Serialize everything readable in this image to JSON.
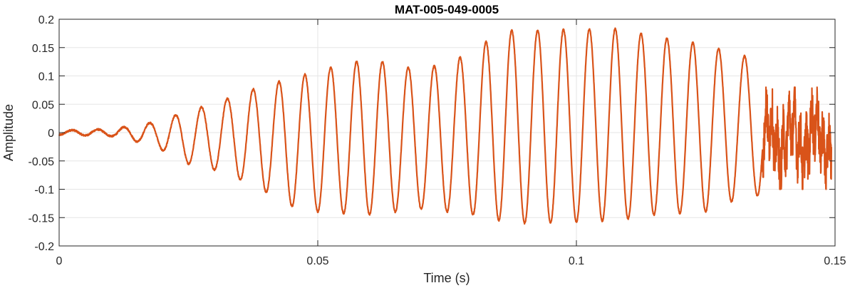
{
  "chart_data": {
    "type": "line",
    "title": "MAT-005-049-0005",
    "xlabel": "Time (s)",
    "ylabel": "Amplitude",
    "xlim": [
      0,
      0.15
    ],
    "ylim": [
      -0.2,
      0.2
    ],
    "grid": true,
    "xticks": [
      0,
      0.05,
      0.1,
      0.15
    ],
    "xtick_labels": [
      "0",
      "0.05",
      "0.1",
      "0.15"
    ],
    "yticks": [
      -0.2,
      -0.15,
      -0.1,
      -0.05,
      0,
      0.05,
      0.1,
      0.15,
      0.2
    ],
    "ytick_labels": [
      "-0.2",
      "-0.15",
      "-0.1",
      "-0.05",
      "0",
      "0.05",
      "0.1",
      "0.15",
      "0.2"
    ],
    "series": [
      {
        "color": "#d95319",
        "envelope": {
          "t": [
            0,
            0.01,
            0.018,
            0.025,
            0.032,
            0.04,
            0.045,
            0.05,
            0.06,
            0.07,
            0.08,
            0.085,
            0.09,
            0.1,
            0.108,
            0.115,
            0.125,
            0.132,
            0.136,
            0.137
          ],
          "pos": [
            0.004,
            0.006,
            0.018,
            0.038,
            0.058,
            0.085,
            0.095,
            0.11,
            0.13,
            0.11,
            0.14,
            0.18,
            0.18,
            0.182,
            0.183,
            0.17,
            0.155,
            0.135,
            0.135,
            0.11
          ],
          "neg": [
            -0.004,
            -0.006,
            -0.022,
            -0.055,
            -0.07,
            -0.105,
            -0.13,
            -0.14,
            -0.145,
            -0.135,
            -0.145,
            -0.155,
            -0.16,
            -0.158,
            -0.155,
            -0.145,
            -0.14,
            -0.115,
            -0.11,
            -0.1
          ]
        },
        "cycle_period_s": 0.005,
        "noisy_tail": {
          "t_start": 0.136,
          "t_end": 0.149,
          "pos": 0.08,
          "neg": -0.1
        }
      }
    ]
  }
}
